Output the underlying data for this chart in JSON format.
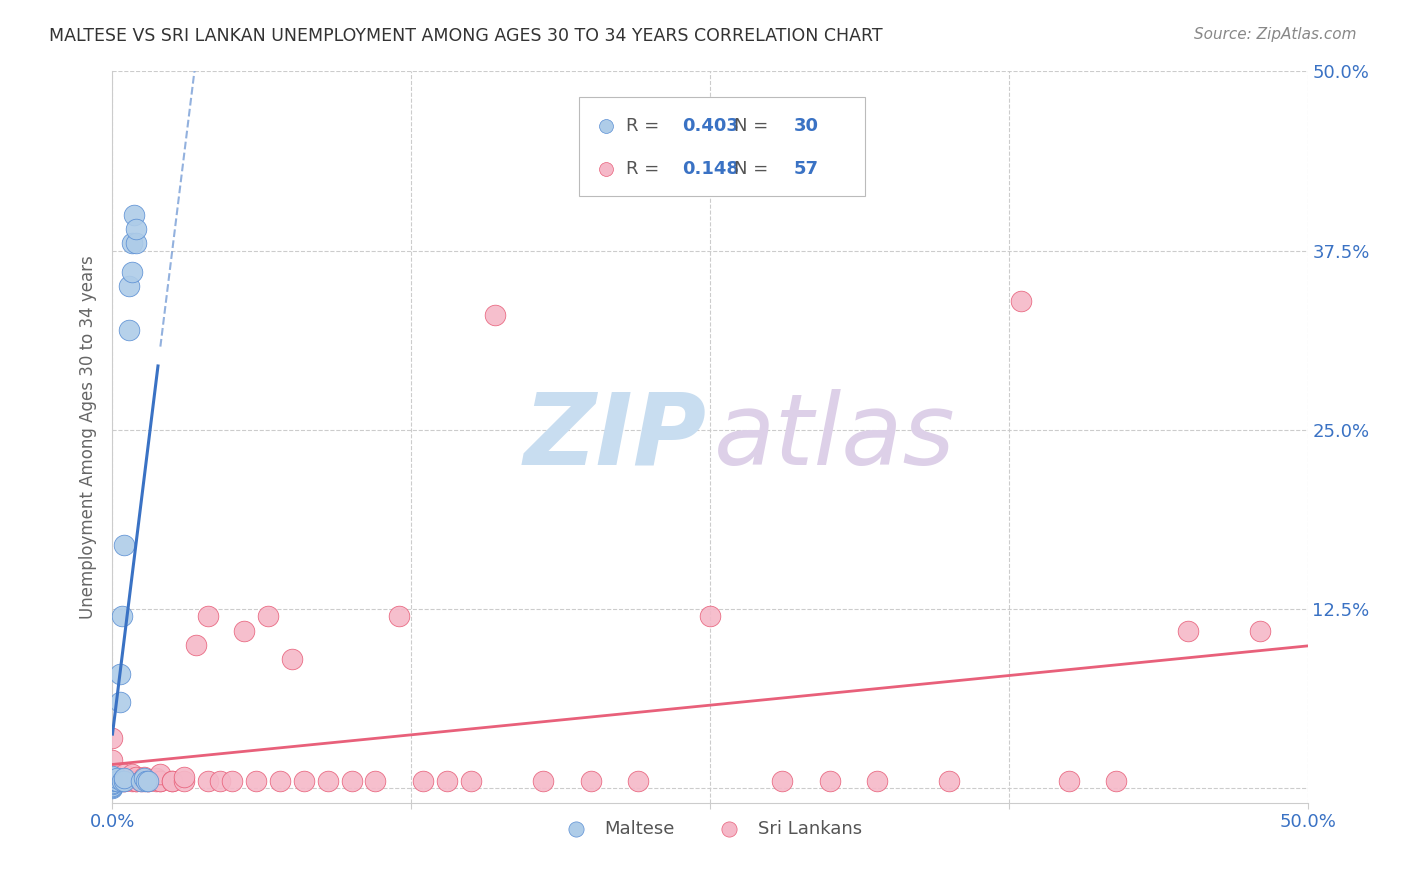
{
  "title": "MALTESE VS SRI LANKAN UNEMPLOYMENT AMONG AGES 30 TO 34 YEARS CORRELATION CHART",
  "source": "Source: ZipAtlas.com",
  "ylabel": "Unemployment Among Ages 30 to 34 years",
  "xlim": [
    0.0,
    0.5
  ],
  "ylim": [
    -0.01,
    0.5
  ],
  "xticks": [
    0.0,
    0.125,
    0.25,
    0.375,
    0.5
  ],
  "yticks": [
    0.0,
    0.125,
    0.25,
    0.375,
    0.5
  ],
  "xticklabels": [
    "0.0%",
    "",
    "",
    "",
    "50.0%"
  ],
  "yticklabels_right": [
    "",
    "12.5%",
    "25.0%",
    "37.5%",
    "50.0%"
  ],
  "maltese_color": "#aecce8",
  "srilankans_color": "#f5b8c8",
  "maltese_edge_color": "#5b8fd4",
  "srilankans_edge_color": "#e8607a",
  "maltese_line_color": "#3a72c4",
  "srilankans_line_color": "#e8607a",
  "legend_color": "#3a72c4",
  "background_color": "#ffffff",
  "grid_color": "#cccccc",
  "maltese_R": 0.403,
  "maltese_N": 30,
  "srilankans_R": 0.148,
  "srilankans_N": 57,
  "maltese_x": [
    0.0,
    0.0,
    0.0,
    0.0,
    0.0,
    0.0,
    0.0,
    0.0,
    0.0,
    0.0,
    0.002,
    0.002,
    0.003,
    0.003,
    0.004,
    0.004,
    0.005,
    0.005,
    0.005,
    0.007,
    0.007,
    0.008,
    0.008,
    0.009,
    0.01,
    0.01,
    0.012,
    0.013,
    0.014,
    0.015
  ],
  "maltese_y": [
    0.0,
    0.001,
    0.002,
    0.003,
    0.004,
    0.005,
    0.006,
    0.007,
    0.008,
    0.009,
    0.005,
    0.007,
    0.06,
    0.08,
    0.005,
    0.12,
    0.005,
    0.007,
    0.17,
    0.32,
    0.35,
    0.36,
    0.38,
    0.4,
    0.38,
    0.39,
    0.005,
    0.007,
    0.005,
    0.005
  ],
  "srilankans_x": [
    0.0,
    0.0,
    0.0,
    0.005,
    0.005,
    0.005,
    0.008,
    0.008,
    0.01,
    0.01,
    0.01,
    0.012,
    0.013,
    0.013,
    0.015,
    0.015,
    0.018,
    0.018,
    0.02,
    0.02,
    0.02,
    0.025,
    0.025,
    0.03,
    0.03,
    0.035,
    0.04,
    0.04,
    0.045,
    0.05,
    0.055,
    0.06,
    0.065,
    0.07,
    0.075,
    0.08,
    0.09,
    0.1,
    0.11,
    0.12,
    0.13,
    0.14,
    0.15,
    0.16,
    0.18,
    0.2,
    0.22,
    0.25,
    0.28,
    0.3,
    0.32,
    0.35,
    0.38,
    0.4,
    0.42,
    0.45,
    0.48
  ],
  "srilankans_y": [
    0.01,
    0.02,
    0.035,
    0.005,
    0.005,
    0.01,
    0.005,
    0.01,
    0.005,
    0.005,
    0.008,
    0.005,
    0.005,
    0.008,
    0.005,
    0.005,
    0.005,
    0.007,
    0.005,
    0.005,
    0.01,
    0.005,
    0.005,
    0.005,
    0.008,
    0.1,
    0.005,
    0.12,
    0.005,
    0.005,
    0.11,
    0.005,
    0.12,
    0.005,
    0.09,
    0.005,
    0.005,
    0.005,
    0.005,
    0.12,
    0.005,
    0.005,
    0.005,
    0.33,
    0.005,
    0.005,
    0.005,
    0.12,
    0.005,
    0.005,
    0.005,
    0.005,
    0.34,
    0.005,
    0.005,
    0.11,
    0.11
  ],
  "watermark_zip_color": "#c8ddf0",
  "watermark_atlas_color": "#ddd0e8"
}
